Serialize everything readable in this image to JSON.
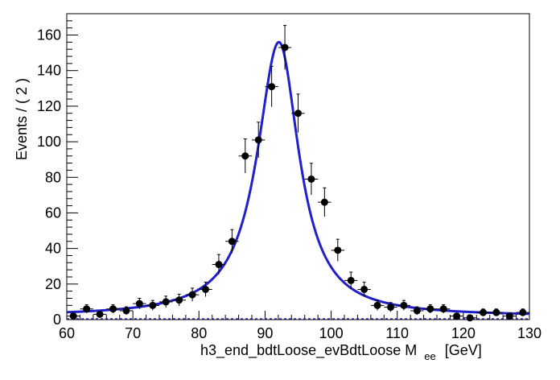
{
  "chart_data": {
    "type": "scatter",
    "xlabel": "h3_end_bdtLoose_evBdtLoose  M",
    "xlabel_subscript": "ee",
    "xlabel_unit": "[GeV]",
    "ylabel": "Events / ( 2 )",
    "xlim": [
      60,
      130
    ],
    "ylim": [
      0,
      172
    ],
    "x_ticks": [
      60,
      70,
      80,
      90,
      100,
      110,
      120,
      130
    ],
    "y_ticks": [
      0,
      20,
      40,
      60,
      80,
      100,
      120,
      140,
      160
    ],
    "colors": {
      "fit": "#1f1fcc",
      "points": "#000000"
    },
    "series": [
      {
        "kind": "data-points",
        "x_err": 1,
        "points": [
          {
            "x": 61,
            "y": 2,
            "err": 1.4
          },
          {
            "x": 63,
            "y": 6,
            "err": 2.4
          },
          {
            "x": 65,
            "y": 3,
            "err": 1.7
          },
          {
            "x": 67,
            "y": 6,
            "err": 2.4
          },
          {
            "x": 69,
            "y": 5,
            "err": 2.2
          },
          {
            "x": 71,
            "y": 9,
            "err": 3.0
          },
          {
            "x": 73,
            "y": 8,
            "err": 2.8
          },
          {
            "x": 75,
            "y": 10,
            "err": 3.2
          },
          {
            "x": 77,
            "y": 11,
            "err": 3.3
          },
          {
            "x": 79,
            "y": 14,
            "err": 3.7
          },
          {
            "x": 81,
            "y": 17,
            "err": 4.1
          },
          {
            "x": 83,
            "y": 31,
            "err": 5.6
          },
          {
            "x": 85,
            "y": 44,
            "err": 6.6
          },
          {
            "x": 87,
            "y": 92,
            "err": 9.6
          },
          {
            "x": 89,
            "y": 101,
            "err": 10.0
          },
          {
            "x": 91,
            "y": 131,
            "err": 11.4
          },
          {
            "x": 93,
            "y": 153,
            "err": 12.4
          },
          {
            "x": 95,
            "y": 116,
            "err": 10.8
          },
          {
            "x": 97,
            "y": 79,
            "err": 8.9
          },
          {
            "x": 99,
            "y": 66,
            "err": 8.1
          },
          {
            "x": 101,
            "y": 39,
            "err": 6.2
          },
          {
            "x": 103,
            "y": 22,
            "err": 4.7
          },
          {
            "x": 105,
            "y": 17,
            "err": 4.1
          },
          {
            "x": 107,
            "y": 8,
            "err": 2.8
          },
          {
            "x": 109,
            "y": 7,
            "err": 2.6
          },
          {
            "x": 111,
            "y": 8,
            "err": 2.8
          },
          {
            "x": 113,
            "y": 5,
            "err": 2.2
          },
          {
            "x": 115,
            "y": 6,
            "err": 2.4
          },
          {
            "x": 117,
            "y": 6,
            "err": 2.4
          },
          {
            "x": 119,
            "y": 2,
            "err": 1.4
          },
          {
            "x": 121,
            "y": 1,
            "err": 1.0
          },
          {
            "x": 123,
            "y": 4,
            "err": 2.0
          },
          {
            "x": 125,
            "y": 4,
            "err": 2.0
          },
          {
            "x": 127,
            "y": 2,
            "err": 1.4
          },
          {
            "x": 129,
            "y": 4,
            "err": 2.0
          }
        ]
      },
      {
        "kind": "fit-curve",
        "model": {
          "peak_x": 92.1,
          "peak_y": 156,
          "left_width": 4.0,
          "right_width": 3.7,
          "floor": 1.8
        }
      }
    ]
  }
}
